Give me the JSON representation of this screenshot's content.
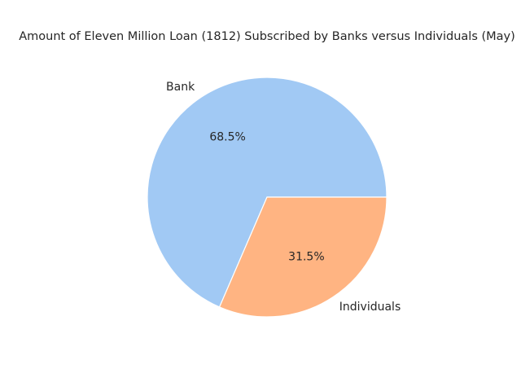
{
  "chart_data": {
    "type": "pie",
    "title": "Amount of Eleven Million Loan (1812) Subscribed by Banks versus Individuals (May)",
    "categories": [
      "Bank",
      "Individuals"
    ],
    "values": [
      68.5,
      31.5
    ],
    "value_labels": [
      "68.5%",
      "31.5%"
    ],
    "colors": [
      "#a1c9f4",
      "#ffb482"
    ],
    "start_angle_deg": 0,
    "direction": "counterclockwise",
    "legend": "none"
  }
}
